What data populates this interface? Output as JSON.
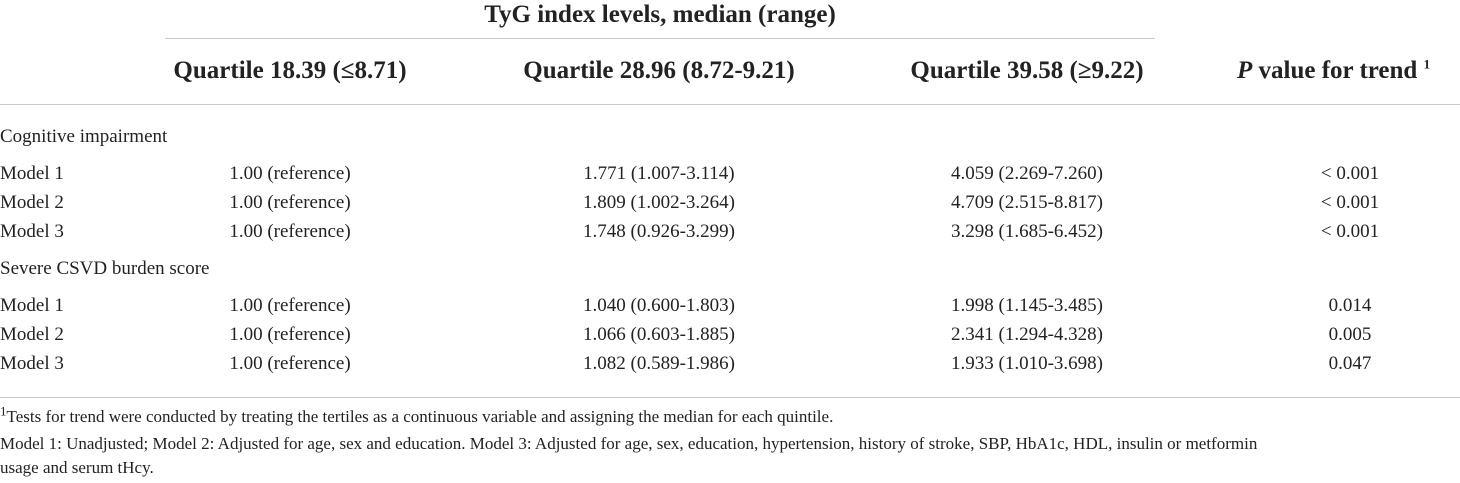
{
  "header": {
    "spanner": "TyG index levels, median (range)",
    "columns": [
      "Quartile 18.39 (≤8.71)",
      "Quartile 28.96 (8.72-9.21)",
      "Quartile 39.58 (≥9.22)"
    ],
    "trend_italic": "P",
    "trend_rest": " value for trend",
    "trend_sup": "1"
  },
  "sections": [
    {
      "title": "Cognitive impairment",
      "rows": [
        {
          "label": "Model 1",
          "q1": "1.00 (reference)",
          "q2": "1.771 (1.007-3.114)",
          "q3": "4.059 (2.269-7.260)",
          "p": "< 0.001"
        },
        {
          "label": "Model 2",
          "q1": "1.00 (reference)",
          "q2": "1.809 (1.002-3.264)",
          "q3": "4.709 (2.515-8.817)",
          "p": "< 0.001"
        },
        {
          "label": "Model 3",
          "q1": "1.00 (reference)",
          "q2": "1.748 (0.926-3.299)",
          "q3": "3.298 (1.685-6.452)",
          "p": "< 0.001"
        }
      ]
    },
    {
      "title": "Severe CSVD burden score",
      "rows": [
        {
          "label": "Model 1",
          "q1": "1.00 (reference)",
          "q2": "1.040 (0.600-1.803)",
          "q3": "1.998 (1.145-3.485)",
          "p": "0.014"
        },
        {
          "label": "Model 2",
          "q1": "1.00 (reference)",
          "q2": "1.066 (0.603-1.885)",
          "q3": "2.341 (1.294-4.328)",
          "p": "0.005"
        },
        {
          "label": "Model 3",
          "q1": "1.00 (reference)",
          "q2": "1.082 (0.589-1.986)",
          "q3": "1.933 (1.010-3.698)",
          "p": "0.047"
        }
      ]
    }
  ],
  "footnotes": {
    "note1_sup": "1",
    "note1": "Tests for trend were conducted by treating the tertiles as a continuous variable and assigning the median for each quintile.",
    "note2_line1": "Model 1: Unadjusted; Model 2: Adjusted for age, sex and education. Model 3: Adjusted for age, sex, education, hypertension, history of stroke, SBP, HbA1c, HDL, insulin or metformin",
    "note2_line2": "usage and serum tHcy."
  }
}
